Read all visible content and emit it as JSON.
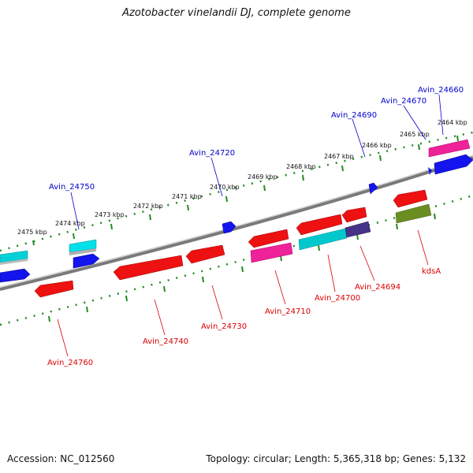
{
  "title": "Azotobacter vinelandii DJ, complete genome",
  "footer": {
    "accession": "Accession: NC_012560",
    "topology": "Topology: circular; Length: 5,365,318 bp; Genes: 5,132"
  },
  "scale_labels": [
    "2475 kbp",
    "2474 kbp",
    "2473 kbp",
    "2472 kbp",
    "2471 kbp",
    "2470 kbp",
    "2469 kbp",
    "2468 kbp",
    "2467 kbp",
    "2466 kbp",
    "2465 kbp",
    "2464 kbp"
  ],
  "colors": {
    "forward_label": "#0000cc",
    "reverse_label": "#dd0000",
    "scale_ticks": "#228b22",
    "backbone": "#808080"
  },
  "upper_genes": [
    {
      "label": "Avin_24750",
      "color": "#1010ee"
    },
    {
      "label": "Avin_24720",
      "color": "#1010ee"
    },
    {
      "label": "Avin_24690",
      "color": "#1010ee"
    },
    {
      "label": "Avin_24670",
      "color": "#1010ee"
    },
    {
      "label": "Avin_24660",
      "color": "#1010ee"
    }
  ],
  "lower_genes": [
    {
      "label": "Avin_24760",
      "color": "#ee1111"
    },
    {
      "label": "Avin_24740",
      "color": "#ee1111"
    },
    {
      "label": "Avin_24730",
      "color": "#ee1111"
    },
    {
      "label": "Avin_24710",
      "color": "#ee1111"
    },
    {
      "label": "Avin_24700",
      "color": "#ee1111"
    },
    {
      "label": "Avin_24694",
      "color": "#ee1111"
    },
    {
      "label": "kdsA",
      "color": "#ee1111"
    }
  ]
}
